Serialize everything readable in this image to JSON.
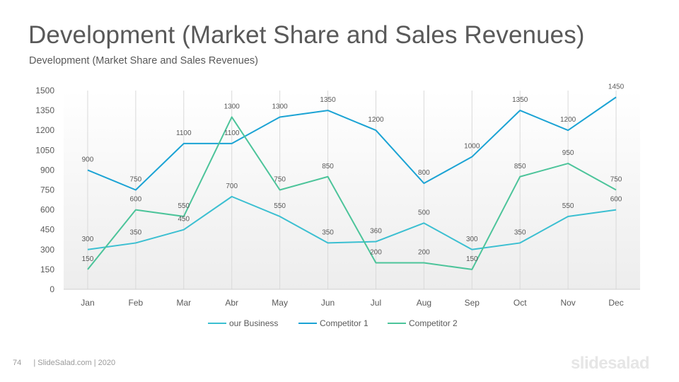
{
  "slide": {
    "title": "Development (Market Share and Sales Revenues)",
    "subtitle": "Development (Market Share and Sales Revenues)"
  },
  "footer": {
    "page_number": "74",
    "text": "| SlideSalad.com | 2020"
  },
  "brand": "slidesalad",
  "colors": {
    "our_business": "#3bbfd1",
    "competitor_1": "#1ba3d4",
    "competitor_2": "#4cc49a",
    "axis_text": "#595959",
    "label_text": "#595959",
    "gridline": "#d9d9d9"
  },
  "chart_data": {
    "type": "line",
    "categories": [
      "Jan",
      "Feb",
      "Mar",
      "Abr",
      "May",
      "Jun",
      "Jul",
      "Aug",
      "Sep",
      "Oct",
      "Nov",
      "Dec"
    ],
    "ylim": [
      0,
      1500
    ],
    "yticks": [
      0,
      150,
      300,
      450,
      600,
      750,
      900,
      1050,
      1200,
      1350,
      1500
    ],
    "grid": "vertical",
    "legend_position": "bottom",
    "series": [
      {
        "name": "our Business",
        "key": "our_business",
        "values": [
          300,
          350,
          450,
          700,
          550,
          350,
          360,
          500,
          300,
          350,
          550,
          600
        ]
      },
      {
        "name": "Competitor 1",
        "key": "competitor_1",
        "values": [
          900,
          750,
          1100,
          1100,
          1300,
          1350,
          1200,
          800,
          1000,
          1350,
          1200,
          1450
        ]
      },
      {
        "name": "Competitor 2",
        "key": "competitor_2",
        "values": [
          150,
          600,
          550,
          1300,
          750,
          850,
          200,
          200,
          150,
          850,
          950,
          750
        ]
      }
    ]
  }
}
